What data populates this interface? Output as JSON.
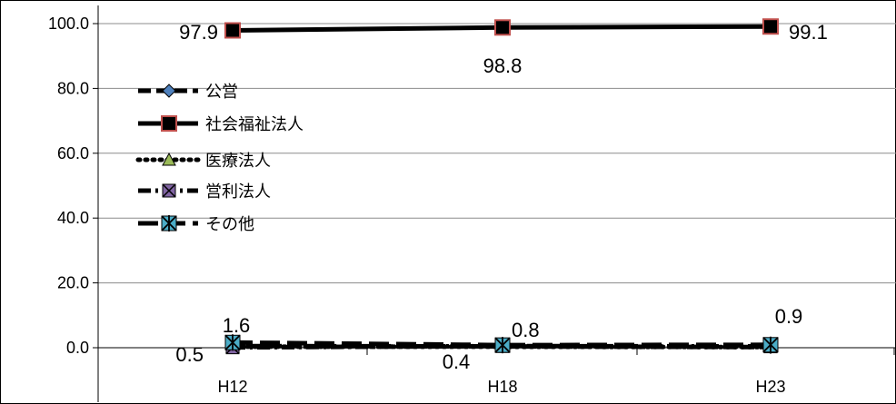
{
  "chart_data": {
    "type": "line",
    "categories": [
      "H12",
      "H18",
      "H23"
    ],
    "ylim": [
      0,
      100
    ],
    "yticks": [
      "0.0",
      "20.0",
      "40.0",
      "60.0",
      "80.0",
      "100.0"
    ],
    "grid": true,
    "legend_position": "left",
    "series": [
      {
        "name": "公営",
        "values": [
          0.5,
          0.4,
          0.2
        ],
        "style": "dash",
        "marker": "diamond",
        "marker_color": "#4F81BD",
        "labels": []
      },
      {
        "name": "社会福祉法人",
        "values": [
          97.9,
          98.8,
          99.1
        ],
        "style": "solid",
        "marker": "square",
        "marker_color": "#C0504D",
        "labels": [
          "97.9",
          "98.8",
          "99.1"
        ]
      },
      {
        "name": "医療法人",
        "values": [
          0.3,
          0.3,
          0.2
        ],
        "style": "dot",
        "marker": "triangle",
        "marker_color": "#9BBB59",
        "labels": []
      },
      {
        "name": "営利法人",
        "values": [
          0.1,
          0.5,
          0.4
        ],
        "style": "dashdot",
        "marker": "x-square",
        "marker_color": "#8064A2",
        "labels": []
      },
      {
        "name": "その他",
        "values": [
          1.6,
          0.8,
          0.9
        ],
        "style": "longdash",
        "marker": "star",
        "marker_color": "#4BACC6",
        "labels": []
      }
    ],
    "annotations": [
      "1.6",
      "0.5",
      "0.8",
      "0.4",
      "0.9"
    ]
  }
}
